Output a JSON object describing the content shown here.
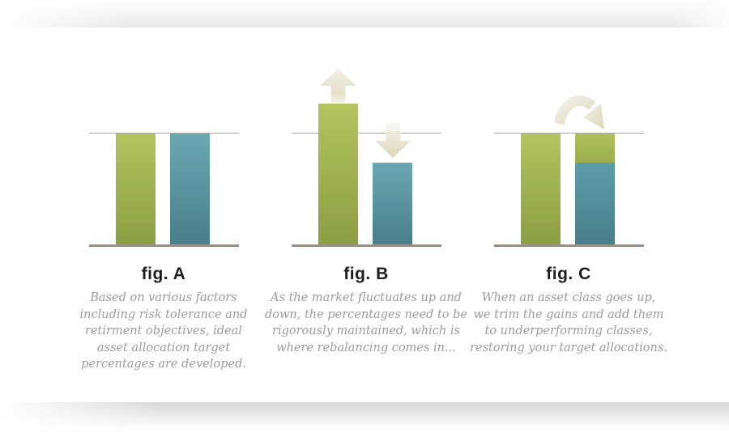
{
  "colors": {
    "green_top": "#b2c55f",
    "green_bottom": "#8c9e43",
    "blue_top": "#6ba8b3",
    "blue_bottom": "#497e8a",
    "arrow_cream_light": "#f0ede2",
    "arrow_cream_dark": "#ddd6ba",
    "target_line": "#ababab",
    "baseline": "#857f78",
    "title_text": "#1d1d1d",
    "caption_text": "#9b9b9b"
  },
  "figures": [
    {
      "label": "fig. A",
      "caption_lines": [
        "Based on various factors",
        "including risk tolerance and",
        "retirment objectives, ideal",
        "asset allocation target",
        "percentages are developed."
      ],
      "bars": {
        "green_pct": 100,
        "blue_pct": 100
      },
      "icons": []
    },
    {
      "label": "fig. B",
      "caption_lines": [
        "As the market fluctuates up and",
        "down, the percentages need to be",
        "rigorously maintained, which is",
        "where rebalancing comes in..."
      ],
      "bars": {
        "green_pct": 127,
        "blue_pct": 74
      },
      "icons": [
        "up-arrow-icon",
        "down-arrow-icon"
      ]
    },
    {
      "label": "fig. C",
      "caption_lines": [
        "When an asset class goes up,",
        "we trim the gains and add them",
        "to underperforming classes,",
        "restoring your target allocations."
      ],
      "bars": {
        "green_pct": 100,
        "stacked_green_pct": 26,
        "stacked_blue_pct": 74
      },
      "icons": [
        "curved-arrow-icon"
      ]
    }
  ]
}
